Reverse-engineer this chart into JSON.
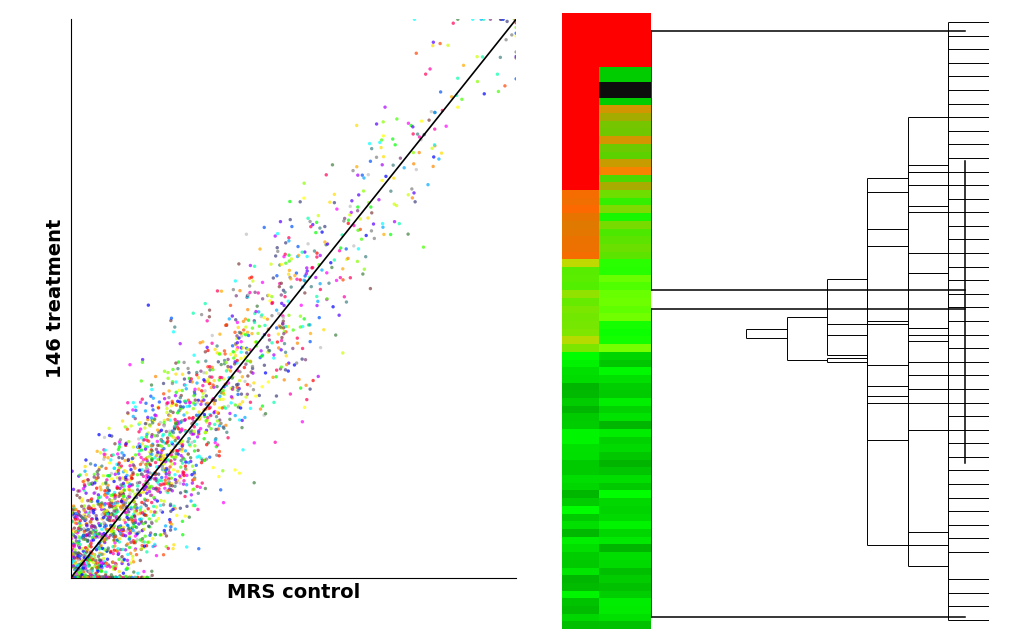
{
  "scatter": {
    "n_points": 2500,
    "seed": 42,
    "xlabel": "MRS control",
    "ylabel": "146 treatment",
    "xlabel_fontsize": 14,
    "ylabel_fontsize": 14,
    "xlabel_fontweight": "bold",
    "ylabel_fontweight": "bold",
    "colors": [
      "#FF0000",
      "#FF4400",
      "#FF8800",
      "#FFAA00",
      "#FFDD00",
      "#FFFF00",
      "#CCFF00",
      "#88FF00",
      "#44FF00",
      "#00FF00",
      "#00FFAA",
      "#00FFFF",
      "#00AAFF",
      "#0055FF",
      "#0000FF",
      "#5500FF",
      "#AA00FF",
      "#FF00FF",
      "#FF00AA",
      "#FF0055",
      "#808080",
      "#C0C0C0",
      "#804040",
      "#408040",
      "#404080",
      "#804080",
      "#408080"
    ]
  },
  "heatmap": {
    "n_rows": 80,
    "dendrogram_bg": "#D6EAF8",
    "border_color": "#FF0000"
  }
}
